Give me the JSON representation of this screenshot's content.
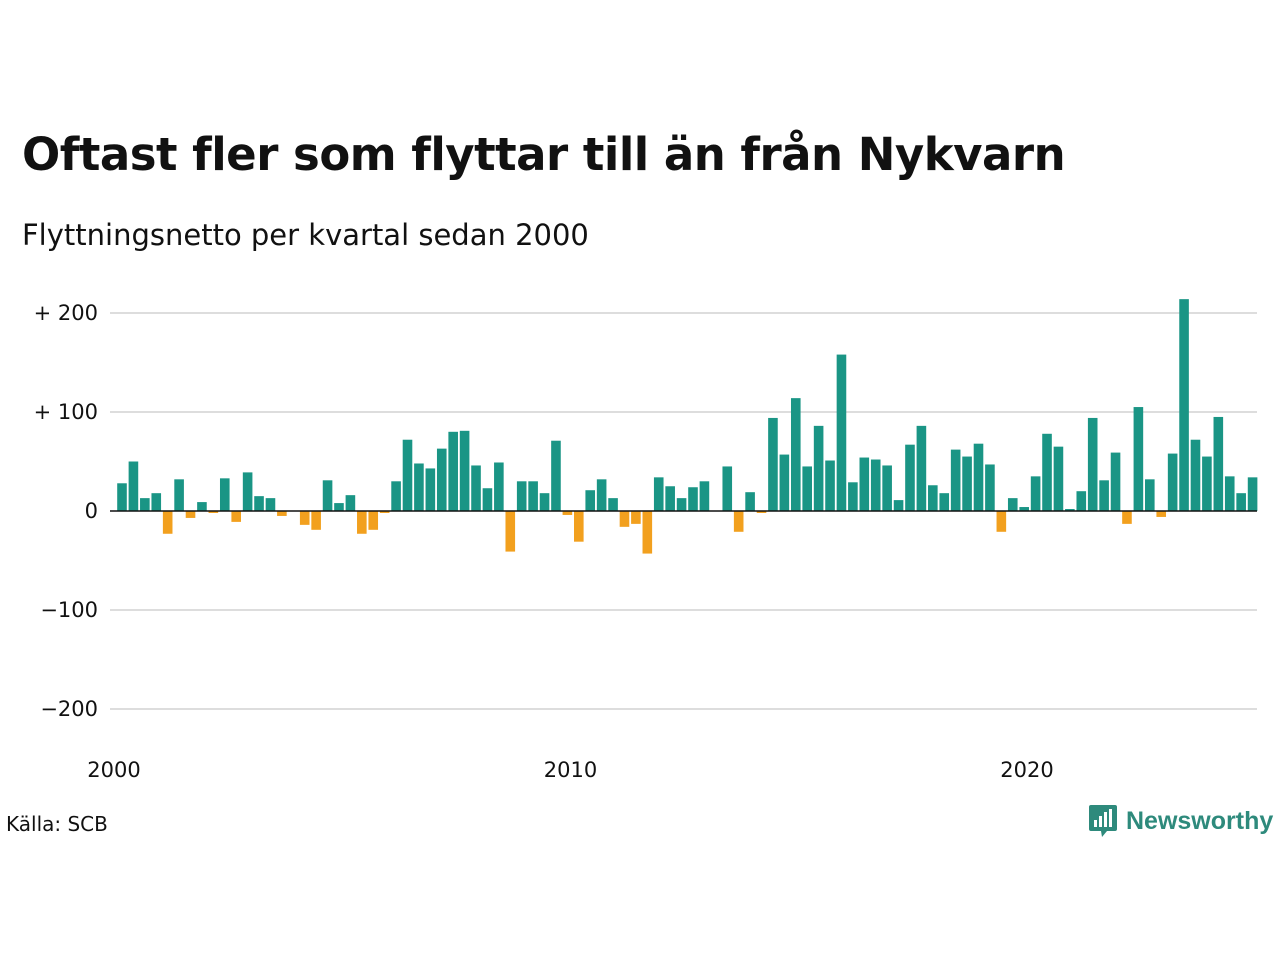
{
  "colors": {
    "positive": "#1a9585",
    "negative": "#f2a01e",
    "grid": "#dddddd",
    "text": "#111111",
    "brand": "#2e8a7c"
  },
  "brand": {
    "name": "Newsworthy",
    "icon": "newsworthy-logo-icon"
  },
  "source": "Källa: SCB",
  "chart_data": {
    "type": "bar",
    "title": "Oftast fler som flyttar till än från Nykvarn",
    "subtitle": "Flyttningsnetto per kvartal sedan 2000",
    "xlabel": "",
    "ylabel": "",
    "ylim": [
      -200,
      200
    ],
    "grid": true,
    "legend": "none",
    "y_ticks": [
      {
        "value": 200,
        "label": "+ 200"
      },
      {
        "value": 100,
        "label": "+ 100"
      },
      {
        "value": 0,
        "label": "0"
      },
      {
        "value": -100,
        "label": "−100"
      },
      {
        "value": -200,
        "label": "−200"
      }
    ],
    "x_ticks": [
      {
        "year": 2000,
        "label": "2000"
      },
      {
        "year": 2010,
        "label": "2010"
      },
      {
        "year": 2020,
        "label": "2020"
      }
    ],
    "x_start": "2000 Q1",
    "period": "quarter",
    "values": [
      28,
      50,
      13,
      18,
      -23,
      32,
      -7,
      9,
      -2,
      33,
      -11,
      39,
      15,
      13,
      -5,
      0,
      -14,
      -19,
      31,
      8,
      16,
      -23,
      -19,
      -2,
      30,
      72,
      48,
      43,
      63,
      80,
      81,
      46,
      23,
      49,
      -41,
      30,
      30,
      18,
      71,
      -4,
      -31,
      21,
      32,
      13,
      -16,
      -13,
      -43,
      34,
      25,
      13,
      24,
      30,
      0,
      45,
      -21,
      19,
      -2,
      94,
      57,
      114,
      45,
      86,
      51,
      158,
      29,
      54,
      52,
      46,
      11,
      67,
      86,
      26,
      18,
      62,
      55,
      68,
      47,
      -21,
      13,
      4,
      35,
      78,
      65,
      2,
      20,
      94,
      31,
      59,
      -13,
      105,
      32,
      -6,
      58,
      214,
      72,
      55,
      95,
      35,
      18,
      34
    ]
  }
}
